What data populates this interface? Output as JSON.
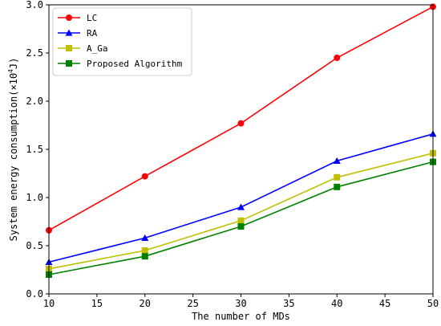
{
  "chart_data": {
    "type": "line",
    "xlabel": "The number of MDs",
    "ylabel_prefix": "System energy consumption(×10",
    "ylabel_exp": "4",
    "ylabel_suffix": "J)",
    "xlim": [
      10,
      50
    ],
    "ylim": [
      0,
      3.0
    ],
    "xticks": [
      "10",
      "15",
      "20",
      "25",
      "30",
      "35",
      "40",
      "45",
      "50"
    ],
    "yticks": [
      "0.0",
      "0.5",
      "1.0",
      "1.5",
      "2.0",
      "2.5",
      "3.0"
    ],
    "grid": false,
    "legend_position": "top-left",
    "x": [
      10,
      20,
      30,
      40,
      50
    ],
    "series": [
      {
        "name": "LC",
        "color": "#ff0000",
        "marker": "circle",
        "values": [
          0.66,
          1.22,
          1.77,
          2.45,
          2.98
        ]
      },
      {
        "name": "RA",
        "color": "#0000ff",
        "marker": "triangle",
        "values": [
          0.33,
          0.58,
          0.9,
          1.38,
          1.66
        ]
      },
      {
        "name": "A_Ga",
        "color": "#bfbf00",
        "marker": "square",
        "values": [
          0.26,
          0.45,
          0.76,
          1.21,
          1.46
        ]
      },
      {
        "name": "Proposed Algorithm",
        "color": "#008000",
        "marker": "square",
        "values": [
          0.2,
          0.39,
          0.7,
          1.11,
          1.37
        ]
      }
    ]
  }
}
